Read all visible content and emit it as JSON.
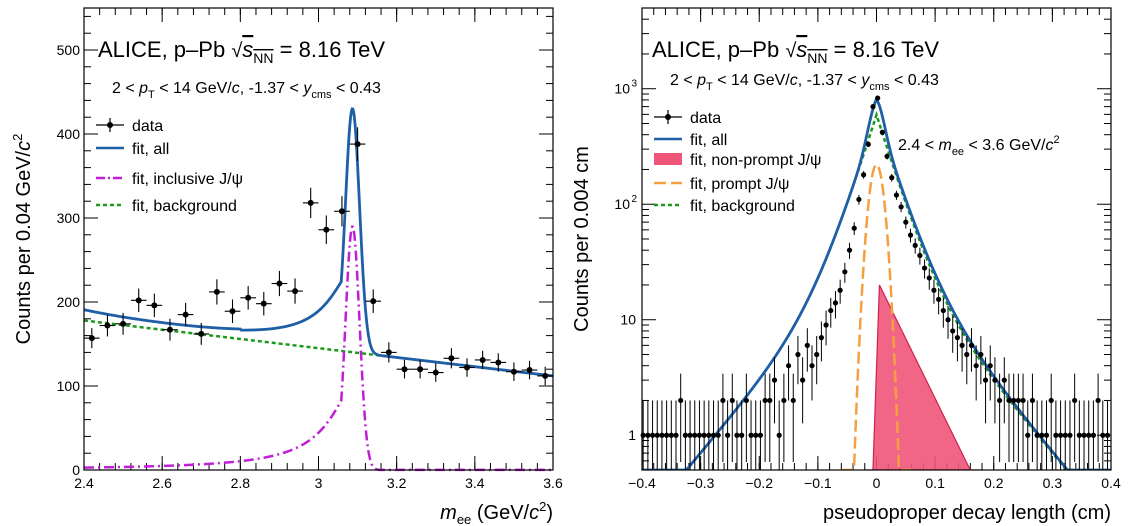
{
  "chart_data": [
    {
      "type": "scatter",
      "header": {
        "collab": "ALICE, p–Pb",
        "energy": "= 8.16 TeV"
      },
      "sub": {
        "left": "2 <",
        "mid": "< 14 GeV/",
        "rapidity": ", -1.37 <",
        "right": "< 0.43"
      },
      "xlabel": {
        "sym": "m",
        "sub": "ee",
        "unit": " (GeV/",
        "c": "c",
        "close": ")"
      },
      "ylabel": {
        "text": "Counts per 0.04 GeV/",
        "c": "c"
      },
      "xlim": [
        2.4,
        3.6
      ],
      "ylim": [
        0,
        550
      ],
      "xticks": [
        "2.4",
        "2.6",
        "2.8",
        "3",
        "3.2",
        "3.4",
        "3.6"
      ],
      "yticks": [
        "0",
        "100",
        "200",
        "300",
        "400",
        "500"
      ],
      "legend": [
        "data",
        "fit, all",
        "fit, inclusive J/ψ",
        "fit, background"
      ],
      "colors": {
        "data": "#000000",
        "all": "#1f5fa8",
        "jpsi": "#c01fd6",
        "bkg": "#1a9a1a"
      },
      "series": [
        {
          "name": "data",
          "x": [
            2.42,
            2.46,
            2.5,
            2.54,
            2.58,
            2.62,
            2.66,
            2.7,
            2.74,
            2.78,
            2.82,
            2.86,
            2.9,
            2.94,
            2.98,
            3.02,
            3.06,
            3.1,
            3.14,
            3.18,
            3.22,
            3.26,
            3.3,
            3.34,
            3.38,
            3.42,
            3.46,
            3.5,
            3.54,
            3.58
          ],
          "y": [
            157,
            172,
            174,
            202,
            196,
            167,
            185,
            162,
            212,
            189,
            205,
            198,
            222,
            213,
            318,
            286,
            308,
            388,
            201,
            140,
            120,
            120,
            116,
            133,
            122,
            131,
            128,
            117,
            119,
            112
          ],
          "err": [
            12,
            13,
            13,
            14,
            14,
            13,
            14,
            13,
            15,
            14,
            14,
            14,
            15,
            15,
            18,
            17,
            18,
            20,
            14,
            12,
            11,
            11,
            11,
            12,
            11,
            11,
            11,
            11,
            11,
            11
          ]
        }
      ]
    },
    {
      "type": "scatter",
      "yscale": "log",
      "header": {
        "collab": "ALICE, p–Pb",
        "energy": "= 8.16 TeV"
      },
      "sub": {
        "left": "2 <",
        "mid": "< 14 GeV/",
        "rapidity": ", -1.37 <",
        "right": "< 0.43"
      },
      "mass_window": {
        "left": "2.4 <",
        "right": "< 3.6 GeV/"
      },
      "xlabel": "pseudoproper decay length (cm)",
      "ylabel": "Counts per 0.004 cm",
      "xlim": [
        -0.4,
        0.4
      ],
      "ylim": [
        0.5,
        5000
      ],
      "xticks": [
        "−0.4",
        "−0.3",
        "−0.2",
        "−0.1",
        "0",
        "0.1",
        "0.2",
        "0.3",
        "0.4"
      ],
      "yticks": [
        "1",
        "10",
        "10",
        "10"
      ],
      "ytick_exp": [
        "",
        "",
        "2",
        "3"
      ],
      "legend": [
        "data",
        "fit, all",
        "fit, non-prompt J/ψ",
        "fit, prompt J/ψ",
        "fit, background"
      ],
      "colors": {
        "data": "#000000",
        "all": "#1f5fa8",
        "nonprompt": "#f0557a",
        "prompt": "#f5a040",
        "bkg": "#1a9a1a"
      },
      "series": [
        {
          "name": "data",
          "x": [
            -0.398,
            -0.39,
            -0.382,
            -0.374,
            -0.366,
            -0.358,
            -0.35,
            -0.342,
            -0.334,
            -0.326,
            -0.318,
            -0.31,
            -0.302,
            -0.294,
            -0.286,
            -0.278,
            -0.27,
            -0.262,
            -0.254,
            -0.246,
            -0.238,
            -0.23,
            -0.222,
            -0.214,
            -0.206,
            -0.198,
            -0.19,
            -0.182,
            -0.174,
            -0.166,
            -0.158,
            -0.15,
            -0.142,
            -0.134,
            -0.126,
            -0.118,
            -0.11,
            -0.102,
            -0.094,
            -0.086,
            -0.078,
            -0.07,
            -0.062,
            -0.054,
            -0.046,
            -0.038,
            -0.03,
            -0.022,
            -0.014,
            -0.006,
            0.002,
            0.01,
            0.018,
            0.026,
            0.034,
            0.042,
            0.05,
            0.058,
            0.066,
            0.074,
            0.082,
            0.09,
            0.098,
            0.106,
            0.114,
            0.122,
            0.13,
            0.138,
            0.146,
            0.154,
            0.162,
            0.17,
            0.178,
            0.186,
            0.194,
            0.202,
            0.21,
            0.218,
            0.226,
            0.234,
            0.242,
            0.25,
            0.258,
            0.266,
            0.274,
            0.282,
            0.29,
            0.298,
            0.306,
            0.314,
            0.322,
            0.33,
            0.338,
            0.346,
            0.354,
            0.362,
            0.37,
            0.378,
            0.386,
            0.394
          ],
          "y": [
            1,
            1,
            1,
            1,
            1,
            1,
            1,
            1,
            2,
            1,
            1,
            1,
            1,
            1,
            1,
            1,
            1,
            2,
            1,
            2,
            1,
            1,
            2,
            1,
            1,
            1,
            2,
            2,
            3,
            1,
            2,
            4,
            2,
            5,
            3,
            6,
            4,
            5,
            7,
            9,
            12,
            14,
            18,
            26,
            40,
            62,
            110,
            180,
            330,
            700,
            830,
            420,
            260,
            170,
            120,
            95,
            70,
            54,
            44,
            36,
            28,
            23,
            18,
            15,
            12,
            10,
            8,
            7,
            6,
            5,
            6,
            4,
            5,
            3,
            4,
            3,
            2,
            3,
            2,
            2,
            2,
            2,
            1,
            2,
            1,
            1,
            1,
            2,
            1,
            1,
            1,
            1,
            2,
            1,
            1,
            1,
            1,
            2,
            1,
            1
          ]
        }
      ]
    }
  ]
}
